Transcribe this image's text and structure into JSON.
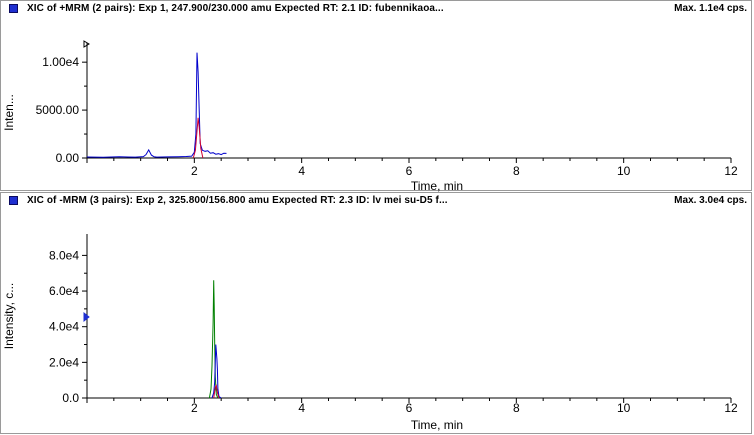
{
  "panels": [
    {
      "title": "XIC of +MRM (2 pairs): Exp 1, 247.900/230.000 amu Expected RT: 2.1 ID: fubennikaoa...",
      "max_label": "Max. 1.1e4 cps.",
      "x_axis_label": "Time, min",
      "y_axis_label": "Inten...",
      "x_ticks": [
        "2",
        "4",
        "6",
        "8",
        "10",
        "12"
      ],
      "y_ticks": [
        "0.00",
        "5000.00",
        "1.00e4"
      ]
    },
    {
      "title": "XIC of -MRM (3 pairs): Exp 2, 325.800/156.800 amu Expected RT: 2.3 ID: lv mei su-D5 f...",
      "max_label": "Max. 3.0e4 cps.",
      "x_axis_label": "Time, min",
      "y_axis_label": "Intensity, c...",
      "x_ticks": [
        "2",
        "4",
        "6",
        "8",
        "10",
        "12"
      ],
      "y_ticks": [
        "0.0",
        "2.0e4",
        "4.0e4",
        "6.0e4",
        "8.0e4"
      ]
    }
  ],
  "colors": {
    "trace_blue": "#0000cc",
    "trace_red": "#cc0033",
    "trace_green": "#008000",
    "marker_blue": "#1f2fd0"
  },
  "chart_data": [
    {
      "type": "line",
      "xlabel": "Time, min",
      "ylabel": "Inten...",
      "xlim": [
        0,
        12
      ],
      "ylim": [
        0,
        12000
      ],
      "series": [
        {
          "color": "#0000cc",
          "x": [
            0.0,
            0.3,
            0.6,
            0.9,
            1.05,
            1.1,
            1.15,
            1.2,
            1.25,
            1.3,
            1.5,
            1.7,
            1.85,
            1.95,
            2.0,
            2.03,
            2.05,
            2.07,
            2.09,
            2.11,
            2.15,
            2.2,
            2.25,
            2.3,
            2.35,
            2.4,
            2.45,
            2.5,
            2.55,
            2.6
          ],
          "y": [
            100,
            80,
            120,
            90,
            150,
            350,
            850,
            300,
            120,
            90,
            110,
            140,
            160,
            200,
            600,
            2500,
            11000,
            9000,
            5000,
            1500,
            800,
            700,
            750,
            500,
            550,
            400,
            450,
            350,
            500,
            480
          ]
        },
        {
          "color": "#cc0033",
          "x": [
            1.98,
            2.02,
            2.05,
            2.07,
            2.09,
            2.12,
            2.16
          ],
          "y": [
            0,
            800,
            2800,
            4200,
            3200,
            1000,
            0
          ]
        }
      ]
    },
    {
      "type": "line",
      "xlabel": "Time, min",
      "ylabel": "Intensity, c...",
      "xlim": [
        0,
        12
      ],
      "ylim": [
        0,
        92000
      ],
      "series": [
        {
          "color": "#008000",
          "x": [
            2.28,
            2.31,
            2.33,
            2.35,
            2.36,
            2.37,
            2.38,
            2.39,
            2.41,
            2.44
          ],
          "y": [
            0,
            5000,
            18000,
            42000,
            66000,
            52000,
            30000,
            12000,
            2000,
            0
          ]
        },
        {
          "color": "#0000cc",
          "x": [
            2.33,
            2.36,
            2.38,
            2.4,
            2.42,
            2.43,
            2.44,
            2.46,
            2.5
          ],
          "y": [
            0,
            3000,
            9000,
            30000,
            22000,
            16000,
            5000,
            800,
            0
          ]
        },
        {
          "color": "#cc0033",
          "x": [
            2.36,
            2.39,
            2.41,
            2.43,
            2.46
          ],
          "y": [
            0,
            6000,
            7000,
            3000,
            0
          ]
        }
      ]
    }
  ]
}
